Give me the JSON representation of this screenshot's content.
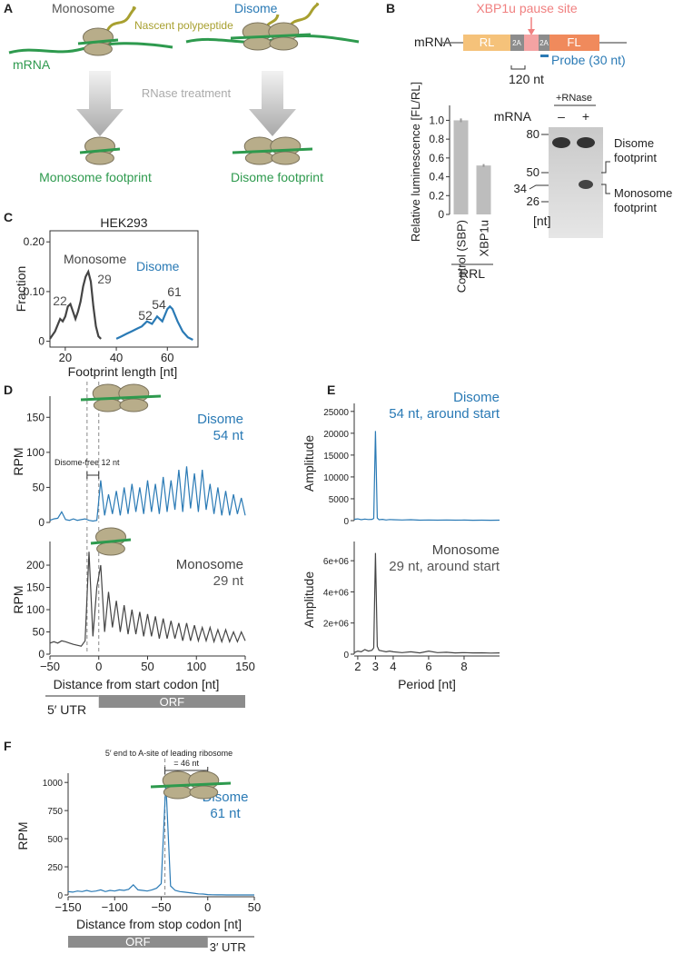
{
  "panel_labels": [
    "A",
    "B",
    "C",
    "D",
    "E",
    "F"
  ],
  "diagram_a": {
    "monosome": "Monosome",
    "nascent_polypeptide": "Nascent polypeptide",
    "disome": "Disome",
    "mrna": "mRNA",
    "treatment": "RNase treatment",
    "monosome_footprint": "Monosome footprint",
    "disome_footprint": "Disome footprint"
  },
  "construct_b": {
    "pause_site": "XBP1u pause site",
    "mrna": "mRNA",
    "segments": [
      "RL",
      "2A",
      "2A",
      "FL"
    ],
    "probe": "Probe (30 nt)",
    "distance": "120 nt"
  },
  "gel_b": {
    "treatment": "+RNase",
    "lane_header": "mRNA",
    "lanes": [
      "–",
      "+"
    ],
    "ladder": [
      "80",
      "50",
      "34",
      "26"
    ],
    "unit": "[nt]",
    "bands": [
      "Disome footprint",
      "Monosome footprint"
    ]
  },
  "chart_data": [
    {
      "type": "bar",
      "y_label": "Relative luminescence [FL/RL]",
      "categories": [
        "Control (SBP)",
        "XBP1u"
      ],
      "values": [
        1.0,
        0.52
      ],
      "errors": [
        0.02,
        0.015
      ],
      "color": "#bdbdbd",
      "group_label": "RRL",
      "ylim": [
        0,
        1.12
      ],
      "yticks": [
        0,
        0.2,
        0.4,
        0.6,
        0.8,
        {
          "value": 1,
          "label": "1.0"
        }
      ]
    },
    {
      "type": "line",
      "title": "HEK293",
      "y_label": "Fraction",
      "x_label": "Footprint length [nt]",
      "xlim": [
        14,
        72
      ],
      "xticks": [
        20,
        40,
        60
      ],
      "ylim": [
        -0.008,
        0.215
      ],
      "yticks": [
        0,
        {
          "value": 0.1,
          "label": "0.10"
        },
        {
          "value": 0.2,
          "label": "0.20"
        }
      ],
      "series": [
        {
          "name": "Monosome",
          "color": "#444444",
          "x": [
            14,
            16,
            18,
            19,
            20,
            21,
            22,
            23,
            24,
            25,
            26,
            27,
            28,
            29,
            30,
            31,
            32,
            33,
            34
          ],
          "values": [
            0.005,
            0.02,
            0.045,
            0.04,
            0.05,
            0.07,
            0.075,
            0.06,
            0.045,
            0.06,
            0.08,
            0.11,
            0.13,
            0.14,
            0.12,
            0.07,
            0.03,
            0.01,
            0.005
          ]
        },
        {
          "name": "Disome",
          "color": "#2a7ab5",
          "x": [
            40,
            42,
            44,
            46,
            48,
            50,
            52,
            54,
            56,
            58,
            60,
            61,
            62,
            64,
            66,
            68,
            70
          ],
          "values": [
            0.005,
            0.01,
            0.015,
            0.02,
            0.025,
            0.03,
            0.04,
            0.035,
            0.05,
            0.04,
            0.065,
            0.07,
            0.065,
            0.04,
            0.02,
            0.008,
            0.003
          ]
        }
      ],
      "annotations": [
        "22",
        "29",
        "52",
        "54",
        "61"
      ]
    },
    {
      "type": "line",
      "y_label": "RPM",
      "xlim": [
        -50,
        150
      ],
      "ylim": [
        0,
        175
      ],
      "yticks": [
        0,
        50,
        100,
        150
      ],
      "vlines": [
        -12,
        0
      ],
      "x": [
        -50,
        -46,
        -42,
        -38,
        -34,
        -30,
        -26,
        -22,
        -18,
        -14,
        -10,
        -6,
        -2,
        2,
        6,
        10,
        14,
        18,
        22,
        26,
        30,
        34,
        38,
        42,
        46,
        50,
        54,
        58,
        62,
        66,
        70,
        74,
        78,
        82,
        86,
        90,
        94,
        98,
        102,
        106,
        110,
        114,
        118,
        122,
        126,
        130,
        134,
        138,
        142,
        146,
        150
      ],
      "series": [
        {
          "name": "Disome",
          "color": "#2a7ab5",
          "values": [
            3,
            5,
            6,
            15,
            4,
            3,
            5,
            3,
            4,
            5,
            3,
            2,
            3,
            60,
            10,
            40,
            12,
            45,
            10,
            50,
            12,
            55,
            15,
            50,
            12,
            60,
            15,
            55,
            12,
            65,
            15,
            60,
            18,
            75,
            15,
            80,
            20,
            70,
            15,
            75,
            18,
            55,
            12,
            50,
            10,
            45,
            10,
            40,
            12,
            35,
            10
          ]
        }
      ],
      "annotations": [
        "54 nt",
        "Disome-free 12 nt"
      ]
    },
    {
      "type": "line",
      "y_label": "RPM",
      "x_label": "Distance from start codon [nt]",
      "xlim": [
        -50,
        150
      ],
      "xticks": [
        {
          "value": -50,
          "label": "−50"
        },
        0,
        50,
        100,
        150
      ],
      "ylim": [
        0,
        245
      ],
      "yticks": [
        0,
        50,
        100,
        150,
        200
      ],
      "vlines": [
        -12,
        0
      ],
      "x": [
        -50,
        -46,
        -42,
        -38,
        -34,
        -30,
        -26,
        -22,
        -18,
        -14,
        -10,
        -6,
        -2,
        2,
        6,
        10,
        14,
        18,
        22,
        26,
        30,
        34,
        38,
        42,
        46,
        50,
        54,
        58,
        62,
        66,
        70,
        74,
        78,
        82,
        86,
        90,
        94,
        98,
        102,
        106,
        110,
        114,
        118,
        122,
        126,
        130,
        134,
        138,
        142,
        146,
        150
      ],
      "series": [
        {
          "name": "Monosome",
          "color": "#444444",
          "values": [
            25,
            28,
            25,
            30,
            28,
            25,
            22,
            20,
            18,
            30,
            230,
            40,
            150,
            200,
            50,
            140,
            60,
            120,
            50,
            110,
            45,
            100,
            45,
            95,
            40,
            90,
            40,
            85,
            35,
            80,
            35,
            75,
            35,
            70,
            30,
            70,
            30,
            65,
            30,
            60,
            30,
            60,
            28,
            55,
            28,
            55,
            28,
            50,
            28,
            50,
            30
          ]
        }
      ],
      "annotations": [
        "29 nt",
        "5′ UTR",
        "ORF"
      ]
    },
    {
      "type": "line",
      "y_label": "Amplitude",
      "xlim": [
        1.8,
        10
      ],
      "ylim": [
        0,
        26000
      ],
      "yticks": [
        0,
        5000,
        10000,
        15000,
        20000,
        25000
      ],
      "x": [
        1.8,
        2,
        2.2,
        2.4,
        2.6,
        2.8,
        2.9,
        3,
        3.1,
        3.2,
        3.4,
        3.6,
        3.8,
        4,
        4.5,
        5,
        5.5,
        6,
        6.5,
        7,
        7.5,
        8,
        8.5,
        9,
        9.5,
        10
      ],
      "series": [
        {
          "name": "Disome",
          "color": "#2a7ab5",
          "values": [
            300,
            400,
            200,
            350,
            250,
            300,
            500,
            20500,
            600,
            200,
            300,
            150,
            250,
            200,
            150,
            200,
            100,
            150,
            100,
            150,
            100,
            120,
            80,
            100,
            90,
            100
          ]
        }
      ],
      "annotations": [
        "54 nt, around start"
      ]
    },
    {
      "type": "line",
      "y_label": "Amplitude",
      "x_label": "Period [nt]",
      "xlim": [
        1.8,
        10
      ],
      "xticks": [
        2,
        3,
        4,
        6,
        8
      ],
      "ylim": [
        0,
        7000000
      ],
      "yticks": [
        0,
        {
          "value": 2000000,
          "label": "2e+06"
        },
        {
          "value": 4000000,
          "label": "4e+06"
        },
        {
          "value": 6000000,
          "label": "6e+06"
        }
      ],
      "x": [
        1.8,
        2,
        2.2,
        2.4,
        2.6,
        2.8,
        2.9,
        3,
        3.1,
        3.2,
        3.4,
        3.6,
        3.8,
        4,
        4.5,
        5,
        5.5,
        6,
        6.5,
        7,
        7.5,
        8,
        8.5,
        9,
        9.5,
        10
      ],
      "series": [
        {
          "name": "Monosome",
          "color": "#444444",
          "values": [
            100000,
            200000,
            150000,
            300000,
            200000,
            250000,
            400000,
            6500000,
            500000,
            250000,
            200000,
            150000,
            200000,
            150000,
            100000,
            150000,
            80000,
            200000,
            100000,
            120000,
            80000,
            100000,
            80000,
            90000,
            70000,
            80000
          ]
        }
      ],
      "annotations": [
        "29 nt, around start"
      ]
    },
    {
      "type": "line",
      "y_label": "RPM",
      "x_label": "Distance from stop codon [nt]",
      "xlim": [
        -150,
        50
      ],
      "xticks": [
        {
          "value": -150,
          "label": "−150"
        },
        {
          "value": -100,
          "label": "−100"
        },
        {
          "value": -50,
          "label": "−50"
        },
        0,
        50
      ],
      "ylim": [
        0,
        1050
      ],
      "yticks": [
        0,
        250,
        500,
        750,
        1000
      ],
      "vlines": [
        -46
      ],
      "x": [
        -150,
        -145,
        -140,
        -135,
        -130,
        -125,
        -120,
        -115,
        -110,
        -105,
        -100,
        -95,
        -90,
        -85,
        -80,
        -75,
        -70,
        -65,
        -60,
        -55,
        -50,
        -45,
        -40,
        -35,
        -30,
        -25,
        -20,
        -15,
        -10,
        -5,
        0,
        5,
        10,
        15,
        20,
        25,
        30,
        35,
        40,
        45,
        50
      ],
      "series": [
        {
          "name": "Disome",
          "color": "#2a7ab5",
          "values": [
            30,
            25,
            35,
            30,
            40,
            30,
            35,
            45,
            30,
            40,
            35,
            45,
            40,
            50,
            90,
            45,
            40,
            35,
            45,
            60,
            100,
            1000,
            80,
            40,
            30,
            25,
            20,
            15,
            10,
            8,
            3,
            2,
            1,
            1,
            0,
            0,
            0,
            0,
            0,
            0,
            0
          ]
        }
      ],
      "annotations": [
        "61 nt",
        "5′ end to A-site of leading ribosome",
        "= 46 nt",
        "ORF",
        "3′ UTR"
      ]
    }
  ]
}
